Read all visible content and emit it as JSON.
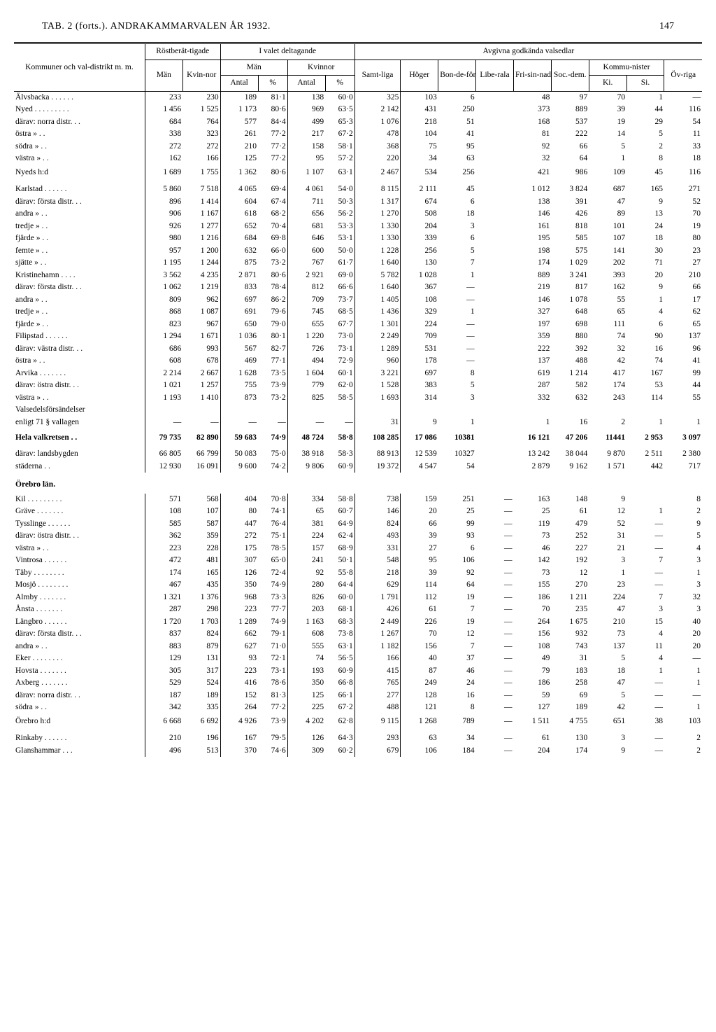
{
  "header": {
    "title": "TAB. 2 (forts.). ANDRAKAMMARVALEN ÅR 1932.",
    "page": "147"
  },
  "columns": {
    "group0": "Kommuner och val-­distrikt m. m.",
    "group1": "Röstberät-­tigade",
    "group1_a": "Män",
    "group1_b": "Kvin-­nor",
    "group2": "I valet deltagande",
    "group2_a": "Män",
    "group2_b": "Kvinnor",
    "group2_sub1": "Antal",
    "group2_sub2": "%",
    "group3": "Avgivna godkända valsedlar",
    "group3_a": "Samt-­liga",
    "group3_b": "Höger",
    "group3_c": "Bon-­de-­förb.",
    "group3_d": "Libe-­rala",
    "group3_e": "Fri-­sin-­nade",
    "group3_f": "Soc.-­dem.",
    "group3_g": "Kommu-­nister",
    "group3_g1": "Ki.",
    "group3_g2": "Si.",
    "group3_h": "Öv-­riga"
  },
  "section_orebro": "Örebro län.",
  "rows": [
    {
      "name": "Älvsbacka . . . . . .",
      "man": "233",
      "kv": "230",
      "ma": "189",
      "mp": "81·1",
      "ka": "138",
      "kp": "60·0",
      "samt": "325",
      "hog": "103",
      "bon": "6",
      "lib": "",
      "fri": "48",
      "soc": "97",
      "ki": "70",
      "si": "1",
      "ov": "—"
    },
    {
      "name": "Nyed . . . . . . . . .",
      "man": "1 456",
      "kv": "1 525",
      "ma": "1 173",
      "mp": "80·6",
      "ka": "969",
      "kp": "63·5",
      "samt": "2 142",
      "hog": "431",
      "bon": "250",
      "lib": "",
      "fri": "373",
      "soc": "889",
      "ki": "39",
      "si": "44",
      "ov": "116"
    },
    {
      "name": "  därav: norra distr. . .",
      "man": "684",
      "kv": "764",
      "ma": "577",
      "mp": "84·4",
      "ka": "499",
      "kp": "65·3",
      "samt": "1 076",
      "hog": "218",
      "bon": "51",
      "lib": "",
      "fri": "168",
      "soc": "537",
      "ki": "19",
      "si": "29",
      "ov": "54"
    },
    {
      "name": "    östra   »   . .",
      "man": "338",
      "kv": "323",
      "ma": "261",
      "mp": "77·2",
      "ka": "217",
      "kp": "67·2",
      "samt": "478",
      "hog": "104",
      "bon": "41",
      "lib": "",
      "fri": "81",
      "soc": "222",
      "ki": "14",
      "si": "5",
      "ov": "11"
    },
    {
      "name": "    södra   »   . .",
      "man": "272",
      "kv": "272",
      "ma": "210",
      "mp": "77·2",
      "ka": "158",
      "kp": "58·1",
      "samt": "368",
      "hog": "75",
      "bon": "95",
      "lib": "",
      "fri": "92",
      "soc": "66",
      "ki": "5",
      "si": "2",
      "ov": "33"
    },
    {
      "name": "    västra  »   . .",
      "man": "162",
      "kv": "166",
      "ma": "125",
      "mp": "77·2",
      "ka": "95",
      "kp": "57·2",
      "samt": "220",
      "hog": "34",
      "bon": "63",
      "lib": "",
      "fri": "32",
      "soc": "64",
      "ki": "1",
      "si": "8",
      "ov": "18"
    },
    {
      "name": "      Nyeds h:d",
      "man": "1 689",
      "kv": "1 755",
      "ma": "1 362",
      "mp": "80·6",
      "ka": "1 107",
      "kp": "63·1",
      "samt": "2 467",
      "hog": "534",
      "bon": "256",
      "lib": "",
      "fri": "421",
      "soc": "986",
      "ki": "109",
      "si": "45",
      "ov": "116",
      "sum": true
    },
    {
      "name": "Karlstad  . . . . . .",
      "man": "5 860",
      "kv": "7 518",
      "ma": "4 065",
      "mp": "69·4",
      "ka": "4 061",
      "kp": "54·0",
      "samt": "8 115",
      "hog": "2 111",
      "bon": "45",
      "lib": "",
      "fri": "1 012",
      "soc": "3 824",
      "ki": "687",
      "si": "165",
      "ov": "271",
      "blank": true
    },
    {
      "name": "  därav: första distr. . .",
      "man": "896",
      "kv": "1 414",
      "ma": "604",
      "mp": "67·4",
      "ka": "711",
      "kp": "50·3",
      "samt": "1 317",
      "hog": "674",
      "bon": "6",
      "lib": "",
      "fri": "138",
      "soc": "391",
      "ki": "47",
      "si": "9",
      "ov": "52"
    },
    {
      "name": "    andra   »   . .",
      "man": "906",
      "kv": "1 167",
      "ma": "618",
      "mp": "68·2",
      "ka": "656",
      "kp": "56·2",
      "samt": "1 270",
      "hog": "508",
      "bon": "18",
      "lib": "",
      "fri": "146",
      "soc": "426",
      "ki": "89",
      "si": "13",
      "ov": "70"
    },
    {
      "name": "    tredje  »   . .",
      "man": "926",
      "kv": "1 277",
      "ma": "652",
      "mp": "70·4",
      "ka": "681",
      "kp": "53·3",
      "samt": "1 330",
      "hog": "204",
      "bon": "3",
      "lib": "",
      "fri": "161",
      "soc": "818",
      "ki": "101",
      "si": "24",
      "ov": "19"
    },
    {
      "name": "    fjärde  »   . .",
      "man": "980",
      "kv": "1 216",
      "ma": "684",
      "mp": "69·8",
      "ka": "646",
      "kp": "53·1",
      "samt": "1 330",
      "hog": "339",
      "bon": "6",
      "lib": "",
      "fri": "195",
      "soc": "585",
      "ki": "107",
      "si": "18",
      "ov": "80"
    },
    {
      "name": "    femte   »   . .",
      "man": "957",
      "kv": "1 200",
      "ma": "632",
      "mp": "66·0",
      "ka": "600",
      "kp": "50·0",
      "samt": "1 228",
      "hog": "256",
      "bon": "5",
      "lib": "",
      "fri": "198",
      "soc": "575",
      "ki": "141",
      "si": "30",
      "ov": "23"
    },
    {
      "name": "    sjätte  »   . .",
      "man": "1 195",
      "kv": "1 244",
      "ma": "875",
      "mp": "73·2",
      "ka": "767",
      "kp": "61·7",
      "samt": "1 640",
      "hog": "130",
      "bon": "7",
      "lib": "",
      "fri": "174",
      "soc": "1 029",
      "ki": "202",
      "si": "71",
      "ov": "27"
    },
    {
      "name": "Kristinehamn . . . .",
      "man": "3 562",
      "kv": "4 235",
      "ma": "2 871",
      "mp": "80·6",
      "ka": "2 921",
      "kp": "69·0",
      "samt": "5 782",
      "hog": "1 028",
      "bon": "1",
      "lib": "",
      "fri": "889",
      "soc": "3 241",
      "ki": "393",
      "si": "20",
      "ov": "210"
    },
    {
      "name": "  därav: första distr. . .",
      "man": "1 062",
      "kv": "1 219",
      "ma": "833",
      "mp": "78·4",
      "ka": "812",
      "kp": "66·6",
      "samt": "1 640",
      "hog": "367",
      "bon": "—",
      "lib": "",
      "fri": "219",
      "soc": "817",
      "ki": "162",
      "si": "9",
      "ov": "66"
    },
    {
      "name": "    andra   »   . .",
      "man": "809",
      "kv": "962",
      "ma": "697",
      "mp": "86·2",
      "ka": "709",
      "kp": "73·7",
      "samt": "1 405",
      "hog": "108",
      "bon": "—",
      "lib": "",
      "fri": "146",
      "soc": "1 078",
      "ki": "55",
      "si": "1",
      "ov": "17"
    },
    {
      "name": "    tredje  »   . .",
      "man": "868",
      "kv": "1 087",
      "ma": "691",
      "mp": "79·6",
      "ka": "745",
      "kp": "68·5",
      "samt": "1 436",
      "hog": "329",
      "bon": "1",
      "lib": "",
      "fri": "327",
      "soc": "648",
      "ki": "65",
      "si": "4",
      "ov": "62"
    },
    {
      "name": "    fjärde  »   . .",
      "man": "823",
      "kv": "967",
      "ma": "650",
      "mp": "79·0",
      "ka": "655",
      "kp": "67·7",
      "samt": "1 301",
      "hog": "224",
      "bon": "—",
      "lib": "",
      "fri": "197",
      "soc": "698",
      "ki": "111",
      "si": "6",
      "ov": "65"
    },
    {
      "name": "Filipstad . . . . . .",
      "man": "1 294",
      "kv": "1 671",
      "ma": "1 036",
      "mp": "80·1",
      "ka": "1 220",
      "kp": "73·0",
      "samt": "2 249",
      "hog": "709",
      "bon": "—",
      "lib": "",
      "fri": "359",
      "soc": "880",
      "ki": "74",
      "si": "90",
      "ov": "137"
    },
    {
      "name": "  därav: västra distr. . .",
      "man": "686",
      "kv": "993",
      "ma": "567",
      "mp": "82·7",
      "ka": "726",
      "kp": "73·1",
      "samt": "1 289",
      "hog": "531",
      "bon": "—",
      "lib": "",
      "fri": "222",
      "soc": "392",
      "ki": "32",
      "si": "16",
      "ov": "96"
    },
    {
      "name": "    östra   »   . .",
      "man": "608",
      "kv": "678",
      "ma": "469",
      "mp": "77·1",
      "ka": "494",
      "kp": "72·9",
      "samt": "960",
      "hog": "178",
      "bon": "—",
      "lib": "",
      "fri": "137",
      "soc": "488",
      "ki": "42",
      "si": "74",
      "ov": "41"
    },
    {
      "name": "Arvika . . . . . . .",
      "man": "2 214",
      "kv": "2 667",
      "ma": "1 628",
      "mp": "73·5",
      "ka": "1 604",
      "kp": "60·1",
      "samt": "3 221",
      "hog": "697",
      "bon": "8",
      "lib": "",
      "fri": "619",
      "soc": "1 214",
      "ki": "417",
      "si": "167",
      "ov": "99"
    },
    {
      "name": "  därav: östra distr. . .",
      "man": "1 021",
      "kv": "1 257",
      "ma": "755",
      "mp": "73·9",
      "ka": "779",
      "kp": "62·0",
      "samt": "1 528",
      "hog": "383",
      "bon": "5",
      "lib": "",
      "fri": "287",
      "soc": "582",
      "ki": "174",
      "si": "53",
      "ov": "44"
    },
    {
      "name": "    västra  »   . .",
      "man": "1 193",
      "kv": "1 410",
      "ma": "873",
      "mp": "73·2",
      "ka": "825",
      "kp": "58·5",
      "samt": "1 693",
      "hog": "314",
      "bon": "3",
      "lib": "",
      "fri": "332",
      "soc": "632",
      "ki": "243",
      "si": "114",
      "ov": "55"
    },
    {
      "name": "Valsedelsförsändelser",
      "man": "",
      "kv": "",
      "ma": "",
      "mp": "",
      "ka": "",
      "kp": "",
      "samt": "",
      "hog": "",
      "bon": "",
      "lib": "",
      "fri": "",
      "soc": "",
      "ki": "",
      "si": "",
      "ov": ""
    },
    {
      "name": "  enligt 71 § vallagen",
      "man": "—",
      "kv": "—",
      "ma": "—",
      "mp": "—",
      "ka": "—",
      "kp": "—",
      "samt": "31",
      "hog": "9",
      "bon": "1",
      "lib": "",
      "fri": "1",
      "soc": "16",
      "ki": "2",
      "si": "1",
      "ov": "1"
    },
    {
      "name": "Hela valkretsen . .",
      "man": "79 735",
      "kv": "82 890",
      "ma": "59 683",
      "mp": "74·9",
      "ka": "48 724",
      "kp": "58·8",
      "samt": "108 285",
      "hog": "17 086",
      "bon": "10381",
      "lib": "",
      "fri": "16 121",
      "soc": "47 206",
      "ki": "11441",
      "si": "2 953",
      "ov": "3 097",
      "bold": true,
      "blank": true
    },
    {
      "name": "därav: landsbygden",
      "man": "66 805",
      "kv": "66 799",
      "ma": "50 083",
      "mp": "75·0",
      "ka": "38 918",
      "kp": "58·3",
      "samt": "88 913",
      "hog": "12 539",
      "bon": "10327",
      "lib": "",
      "fri": "13 242",
      "soc": "38 044",
      "ki": "9 870",
      "si": "2 511",
      "ov": "2 380",
      "blank": true
    },
    {
      "name": "    städerna . .",
      "man": "12 930",
      "kv": "16 091",
      "ma": "9 600",
      "mp": "74·2",
      "ka": "9 806",
      "kp": "60·9",
      "samt": "19 372",
      "hog": "4 547",
      "bon": "54",
      "lib": "",
      "fri": "2 879",
      "soc": "9 162",
      "ki": "1 571",
      "si": "442",
      "ov": "717"
    }
  ],
  "rows2": [
    {
      "name": "Kil . . . . . . . . .",
      "man": "571",
      "kv": "568",
      "ma": "404",
      "mp": "70·8",
      "ka": "334",
      "kp": "58·8",
      "samt": "738",
      "hog": "159",
      "bon": "251",
      "lib": "—",
      "fri": "163",
      "soc": "148",
      "ki": "9",
      "si": "",
      "ov": "8"
    },
    {
      "name": "Gräve  . . . . . . .",
      "man": "108",
      "kv": "107",
      "ma": "80",
      "mp": "74·1",
      "ka": "65",
      "kp": "60·7",
      "samt": "146",
      "hog": "20",
      "bon": "25",
      "lib": "—",
      "fri": "25",
      "soc": "61",
      "ki": "12",
      "si": "1",
      "ov": "2"
    },
    {
      "name": "Tysslinge . . . . . .",
      "man": "585",
      "kv": "587",
      "ma": "447",
      "mp": "76·4",
      "ka": "381",
      "kp": "64·9",
      "samt": "824",
      "hog": "66",
      "bon": "99",
      "lib": "—",
      "fri": "119",
      "soc": "479",
      "ki": "52",
      "si": "—",
      "ov": "9"
    },
    {
      "name": "  därav: östra distr. . .",
      "man": "362",
      "kv": "359",
      "ma": "272",
      "mp": "75·1",
      "ka": "224",
      "kp": "62·4",
      "samt": "493",
      "hog": "39",
      "bon": "93",
      "lib": "—",
      "fri": "73",
      "soc": "252",
      "ki": "31",
      "si": "—",
      "ov": "5"
    },
    {
      "name": "    västra  »   . .",
      "man": "223",
      "kv": "228",
      "ma": "175",
      "mp": "78·5",
      "ka": "157",
      "kp": "68·9",
      "samt": "331",
      "hog": "27",
      "bon": "6",
      "lib": "—",
      "fri": "46",
      "soc": "227",
      "ki": "21",
      "si": "—",
      "ov": "4"
    },
    {
      "name": "Vintrosa  . . . . . .",
      "man": "472",
      "kv": "481",
      "ma": "307",
      "mp": "65·0",
      "ka": "241",
      "kp": "50·1",
      "samt": "548",
      "hog": "95",
      "bon": "106",
      "lib": "—",
      "fri": "142",
      "soc": "192",
      "ki": "3",
      "si": "7",
      "ov": "3"
    },
    {
      "name": "Täby . . . . . . . .",
      "man": "174",
      "kv": "165",
      "ma": "126",
      "mp": "72·4",
      "ka": "92",
      "kp": "55·8",
      "samt": "218",
      "hog": "39",
      "bon": "92",
      "lib": "—",
      "fri": "73",
      "soc": "12",
      "ki": "1",
      "si": "—",
      "ov": "1"
    },
    {
      "name": "Mosjö . . . . . . . .",
      "man": "467",
      "kv": "435",
      "ma": "350",
      "mp": "74·9",
      "ka": "280",
      "kp": "64·4",
      "samt": "629",
      "hog": "114",
      "bon": "64",
      "lib": "—",
      "fri": "155",
      "soc": "270",
      "ki": "23",
      "si": "—",
      "ov": "3"
    },
    {
      "name": "Almby  . . . . . . .",
      "man": "1 321",
      "kv": "1 376",
      "ma": "968",
      "mp": "73·3",
      "ka": "826",
      "kp": "60·0",
      "samt": "1 791",
      "hog": "112",
      "bon": "19",
      "lib": "—",
      "fri": "186",
      "soc": "1 211",
      "ki": "224",
      "si": "7",
      "ov": "32"
    },
    {
      "name": "Ånsta  . . . . . . .",
      "man": "287",
      "kv": "298",
      "ma": "223",
      "mp": "77·7",
      "ka": "203",
      "kp": "68·1",
      "samt": "426",
      "hog": "61",
      "bon": "7",
      "lib": "—",
      "fri": "70",
      "soc": "235",
      "ki": "47",
      "si": "3",
      "ov": "3"
    },
    {
      "name": "Längbro  . . . . . .",
      "man": "1 720",
      "kv": "1 703",
      "ma": "1 289",
      "mp": "74·9",
      "ka": "1 163",
      "kp": "68·3",
      "samt": "2 449",
      "hog": "226",
      "bon": "19",
      "lib": "—",
      "fri": "264",
      "soc": "1 675",
      "ki": "210",
      "si": "15",
      "ov": "40"
    },
    {
      "name": "  därav: första distr. . .",
      "man": "837",
      "kv": "824",
      "ma": "662",
      "mp": "79·1",
      "ka": "608",
      "kp": "73·8",
      "samt": "1 267",
      "hog": "70",
      "bon": "12",
      "lib": "—",
      "fri": "156",
      "soc": "932",
      "ki": "73",
      "si": "4",
      "ov": "20"
    },
    {
      "name": "    andra   »   . .",
      "man": "883",
      "kv": "879",
      "ma": "627",
      "mp": "71·0",
      "ka": "555",
      "kp": "63·1",
      "samt": "1 182",
      "hog": "156",
      "bon": "7",
      "lib": "—",
      "fri": "108",
      "soc": "743",
      "ki": "137",
      "si": "11",
      "ov": "20"
    },
    {
      "name": "Eker . . . . . . . .",
      "man": "129",
      "kv": "131",
      "ma": "93",
      "mp": "72·1",
      "ka": "74",
      "kp": "56·5",
      "samt": "166",
      "hog": "40",
      "bon": "37",
      "lib": "—",
      "fri": "49",
      "soc": "31",
      "ki": "5",
      "si": "4",
      "ov": "—"
    },
    {
      "name": "Hovsta . . . . . . .",
      "man": "305",
      "kv": "317",
      "ma": "223",
      "mp": "73·1",
      "ka": "193",
      "kp": "60·9",
      "samt": "415",
      "hog": "87",
      "bon": "46",
      "lib": "—",
      "fri": "79",
      "soc": "183",
      "ki": "18",
      "si": "1",
      "ov": "1"
    },
    {
      "name": "Axberg . . . . . . .",
      "man": "529",
      "kv": "524",
      "ma": "416",
      "mp": "78·6",
      "ka": "350",
      "kp": "66·8",
      "samt": "765",
      "hog": "249",
      "bon": "24",
      "lib": "—",
      "fri": "186",
      "soc": "258",
      "ki": "47",
      "si": "—",
      "ov": "1"
    },
    {
      "name": "  därav: norra distr. . .",
      "man": "187",
      "kv": "189",
      "ma": "152",
      "mp": "81·3",
      "ka": "125",
      "kp": "66·1",
      "samt": "277",
      "hog": "128",
      "bon": "16",
      "lib": "—",
      "fri": "59",
      "soc": "69",
      "ki": "5",
      "si": "—",
      "ov": "—"
    },
    {
      "name": "    södra   »   . .",
      "man": "342",
      "kv": "335",
      "ma": "264",
      "mp": "77·2",
      "ka": "225",
      "kp": "67·2",
      "samt": "488",
      "hog": "121",
      "bon": "8",
      "lib": "—",
      "fri": "127",
      "soc": "189",
      "ki": "42",
      "si": "—",
      "ov": "1"
    },
    {
      "name": "      Örebro h:d",
      "man": "6 668",
      "kv": "6 692",
      "ma": "4 926",
      "mp": "73·9",
      "ka": "4 202",
      "kp": "62·8",
      "samt": "9 115",
      "hog": "1 268",
      "bon": "789",
      "lib": "—",
      "fri": "1 511",
      "soc": "4 755",
      "ki": "651",
      "si": "38",
      "ov": "103",
      "sum": true
    },
    {
      "name": "Rinkaby  . . . . . .",
      "man": "210",
      "kv": "196",
      "ma": "167",
      "mp": "79·5",
      "ka": "126",
      "kp": "64·3",
      "samt": "293",
      "hog": "63",
      "bon": "34",
      "lib": "—",
      "fri": "61",
      "soc": "130",
      "ki": "3",
      "si": "—",
      "ov": "2",
      "blank": true
    },
    {
      "name": "Glanshammar  . . .",
      "man": "496",
      "kv": "513",
      "ma": "370",
      "mp": "74·6",
      "ka": "309",
      "kp": "60·2",
      "samt": "679",
      "hog": "106",
      "bon": "184",
      "lib": "—",
      "fri": "204",
      "soc": "174",
      "ki": "9",
      "si": "—",
      "ov": "2"
    }
  ]
}
